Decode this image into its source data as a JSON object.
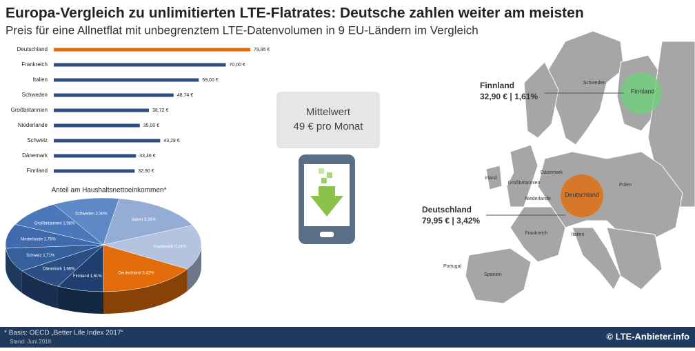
{
  "header": {
    "title": "Europa-Vergleich zu unlimitierten LTE-Flatrates: Deutsche zahlen weiter am meisten",
    "subtitle": "Preis für eine Allnetflat mit unbegrenztem LTE-Datenvolumen in 9 EU-Ländern im Vergleich"
  },
  "chart_data": [
    {
      "type": "bar",
      "orientation": "horizontal",
      "categories": [
        "Deutschland",
        "Frankreich",
        "Italien",
        "Schweden",
        "Großbritannien",
        "Niederlande",
        "Schweiz",
        "Dänemark",
        "Finnland"
      ],
      "values": [
        79.95,
        70.0,
        59.0,
        48.74,
        38.72,
        35.0,
        43.29,
        33.46,
        32.9
      ],
      "value_labels": [
        "79,95 €",
        "70,00 €",
        "59,00 €",
        "48,74 €",
        "38,72 €",
        "35,00 €",
        "43,29 €",
        "33,46 €",
        "32,90 €"
      ],
      "colors": [
        "#e36c0a",
        "#2e4f7f",
        "#2e4f7f",
        "#2e4f7f",
        "#2e4f7f",
        "#2e4f7f",
        "#2e4f7f",
        "#2e4f7f",
        "#2e4f7f"
      ]
    },
    {
      "type": "pie",
      "title": "Anteil am Haushaltsnettoeinkommen*",
      "categories": [
        "Deutschland",
        "Finnland",
        "Dänemark",
        "Schweiz",
        "Niederlande",
        "Großbritannien",
        "Schweden",
        "Italien",
        "Frankreich"
      ],
      "values": [
        3.42,
        1.61,
        1.66,
        1.71,
        1.75,
        1.96,
        2.3,
        3.26,
        3.24
      ],
      "value_labels": [
        "3,42%",
        "1,61%",
        "1,66%",
        "1,71%",
        "1,75%",
        "1,96%",
        "2,30%",
        "3,26%",
        "3,24%"
      ],
      "colors": [
        "#e36c0a",
        "#1f3f6e",
        "#2b4f85",
        "#36609c",
        "#3f6aad",
        "#4a78bb",
        "#5f88c6",
        "#95acd4",
        "#b4c4e0"
      ]
    }
  ],
  "average": {
    "label": "Mittelwert",
    "value": "49 € pro Monat"
  },
  "map": {
    "labels": [
      "Schweden",
      "Großbritannien",
      "Irland",
      "Dänemark",
      "Polen",
      "Frankreich",
      "Spanien",
      "Portugal",
      "Italien",
      "Niederlande"
    ],
    "callouts": [
      {
        "name": "Finnland",
        "text": "32,90 € | 1,61%"
      },
      {
        "name": "Deutschland",
        "text": "79,95 € | 3,42%"
      }
    ]
  },
  "footer": {
    "note": "* Basis: OECD „Better Life Index 2017“",
    "date": "Stand: Juni 2018",
    "copyright": "© LTE-Anbieter.info"
  }
}
